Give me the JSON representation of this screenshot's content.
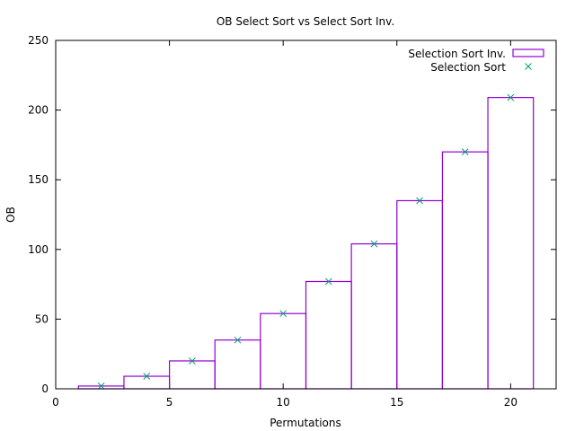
{
  "chart_data": {
    "type": "bar",
    "title": "OB Select Sort vs Select Sort Inv.",
    "xlabel": "Permutations",
    "ylabel": "OB",
    "xlim": [
      0,
      22
    ],
    "ylim": [
      0,
      250
    ],
    "xticks": [
      0,
      5,
      10,
      15,
      20
    ],
    "yticks": [
      0,
      50,
      100,
      150,
      200,
      250
    ],
    "legend_position": "top-right",
    "grid": false,
    "series": [
      {
        "name": "Selection Sort Inv.",
        "style": "boxes",
        "color": "#9400d3",
        "x": [
          2,
          4,
          6,
          8,
          10,
          12,
          14,
          16,
          18,
          20
        ],
        "values": [
          2,
          9,
          20,
          35,
          54,
          77,
          104,
          135,
          170,
          209
        ]
      },
      {
        "name": "Selection Sort",
        "style": "points",
        "marker": "x",
        "color": "#009e73",
        "x": [
          2,
          4,
          6,
          8,
          10,
          12,
          14,
          16,
          18,
          20
        ],
        "values": [
          2,
          9,
          20,
          35,
          54,
          77,
          104,
          135,
          170,
          209
        ]
      }
    ]
  }
}
